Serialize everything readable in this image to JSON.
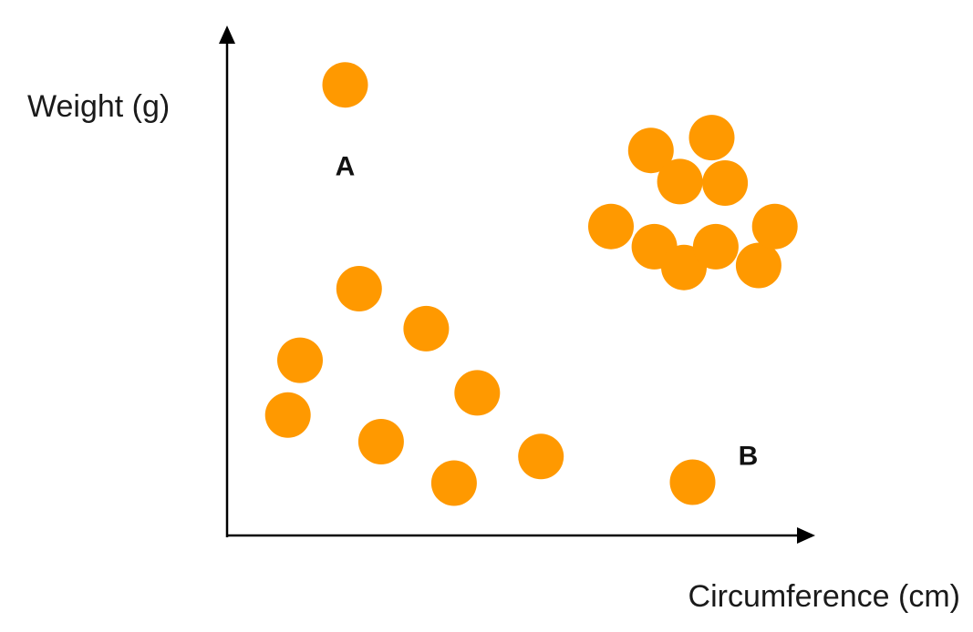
{
  "chart_data": {
    "type": "scatter",
    "xlabel": "Circumference (cm)",
    "ylabel": "Weight (g)",
    "xlim": [
      0,
      100
    ],
    "ylim": [
      0,
      100
    ],
    "grid": false,
    "legend": "none",
    "ticks": false,
    "marker_color": "#ff9900",
    "axis_color": "#000000",
    "points": [
      {
        "x": 20.4,
        "y": 91.3
      },
      {
        "x": 22.8,
        "y": 50.0
      },
      {
        "x": 34.4,
        "y": 41.9
      },
      {
        "x": 12.6,
        "y": 35.5
      },
      {
        "x": 43.2,
        "y": 28.9
      },
      {
        "x": 10.5,
        "y": 24.4
      },
      {
        "x": 26.6,
        "y": 19.0
      },
      {
        "x": 54.2,
        "y": 16.0
      },
      {
        "x": 39.2,
        "y": 10.6
      },
      {
        "x": 80.4,
        "y": 10.8
      },
      {
        "x": 73.2,
        "y": 78.0
      },
      {
        "x": 83.7,
        "y": 80.6
      },
      {
        "x": 78.2,
        "y": 71.7
      },
      {
        "x": 86.0,
        "y": 71.4
      },
      {
        "x": 66.3,
        "y": 62.6
      },
      {
        "x": 73.8,
        "y": 58.5
      },
      {
        "x": 78.9,
        "y": 54.3
      },
      {
        "x": 84.4,
        "y": 58.5
      },
      {
        "x": 91.8,
        "y": 54.7
      },
      {
        "x": 94.6,
        "y": 62.6
      }
    ],
    "annotations": [
      {
        "text": "A",
        "x": 20.4,
        "y": 74.4
      },
      {
        "text": "B",
        "x": 90.0,
        "y": 15.8
      }
    ]
  }
}
